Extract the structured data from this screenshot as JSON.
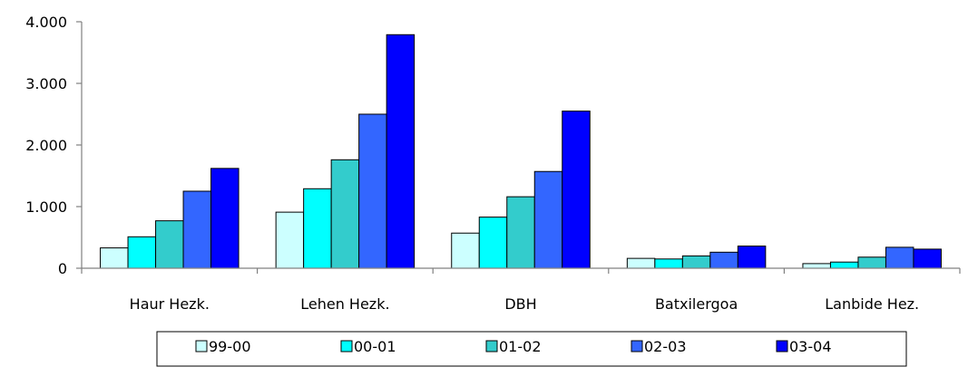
{
  "chart_data": {
    "type": "bar",
    "categories": [
      "Haur Hezk.",
      "Lehen Hezk.",
      "DBH",
      "Batxilergoa",
      "Lanbide Hez."
    ],
    "series": [
      {
        "name": "99-00",
        "color": "#ccffff",
        "values": [
          330,
          910,
          570,
          160,
          75
        ]
      },
      {
        "name": "00-01",
        "color": "#00ffff",
        "values": [
          510,
          1290,
          830,
          150,
          100
        ]
      },
      {
        "name": "01-02",
        "color": "#33cccc",
        "values": [
          770,
          1760,
          1160,
          200,
          180
        ]
      },
      {
        "name": "02-03",
        "color": "#3366ff",
        "values": [
          1250,
          2500,
          1570,
          260,
          340
        ]
      },
      {
        "name": "03-04",
        "color": "#0000ff",
        "values": [
          1620,
          3790,
          2550,
          360,
          310
        ]
      }
    ],
    "yticks": [
      "0",
      "1.000",
      "2.000",
      "3.000",
      "4.000"
    ],
    "ylim": [
      0,
      4000
    ],
    "grid": false,
    "legend_position": "bottom"
  }
}
